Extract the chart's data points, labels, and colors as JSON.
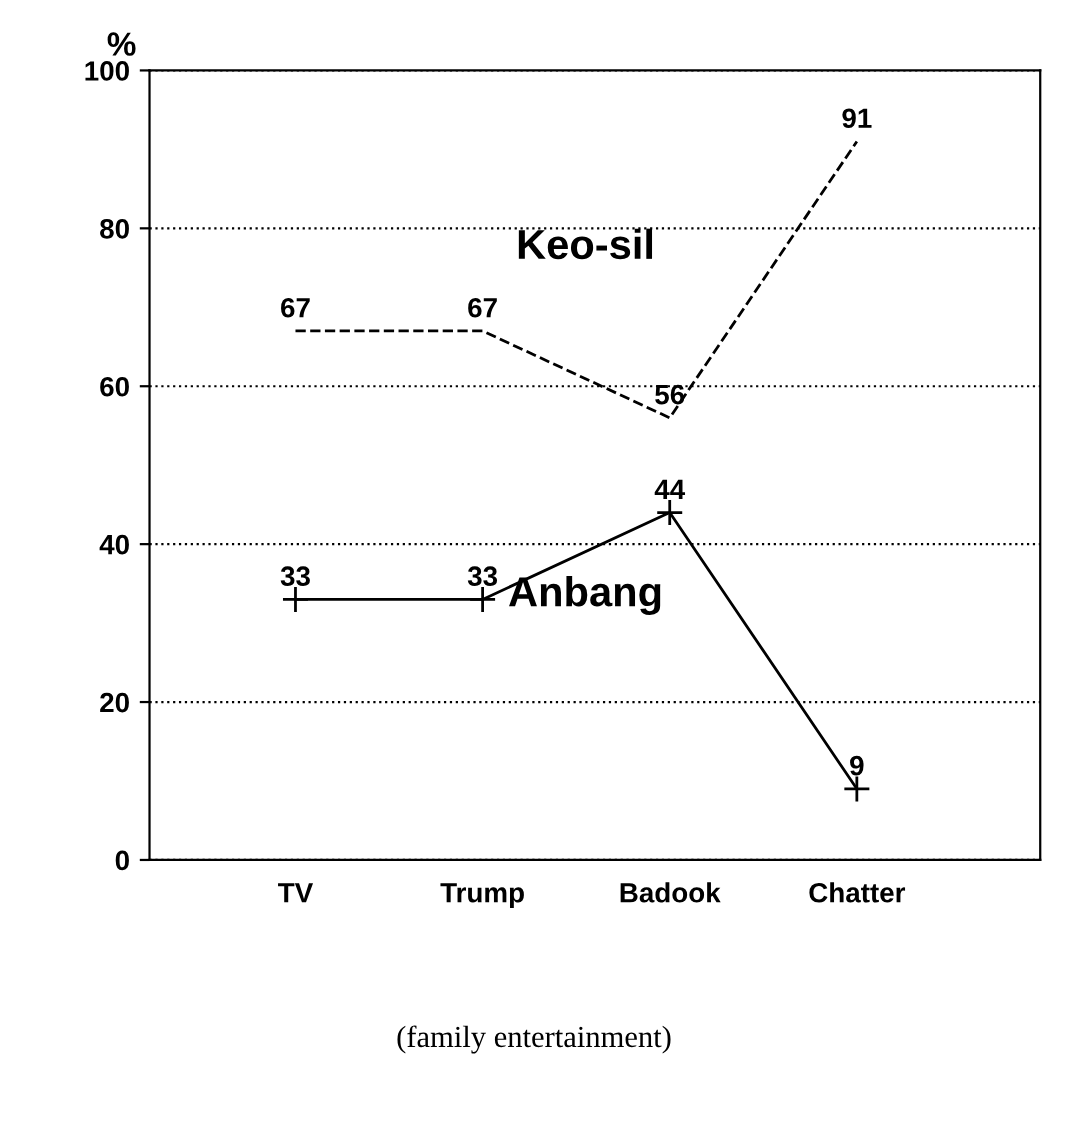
{
  "chart_data": {
    "type": "line",
    "ylabel": "%",
    "categories": [
      "TV",
      "Trump",
      "Badook",
      "Chatter"
    ],
    "series": [
      {
        "name": "Keo-sil",
        "color": "#000000",
        "values": [
          67,
          67,
          56,
          91
        ],
        "line_style": "dashed",
        "marker": "none"
      },
      {
        "name": "Anbang",
        "color": "#000000",
        "values": [
          33,
          33,
          44,
          9
        ],
        "line_style": "solid",
        "marker": "cross"
      }
    ],
    "ylim": [
      0,
      100
    ],
    "yticks": [
      0,
      20,
      40,
      60,
      80,
      100
    ],
    "grid": "y",
    "legend": false,
    "data_labels": true,
    "annotations": [
      "(family entertainment)"
    ]
  }
}
